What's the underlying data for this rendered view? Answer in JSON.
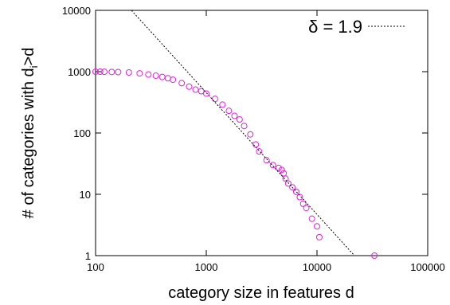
{
  "chart_data": {
    "type": "scatter",
    "xlabel": "category size in features d",
    "ylabel_parts": [
      "# of categories with d",
      "i",
      ">d"
    ],
    "xscale": "log",
    "yscale": "log",
    "xlim": [
      100,
      100000
    ],
    "ylim": [
      1,
      10000
    ],
    "xticks": [
      100,
      1000,
      10000,
      100000
    ],
    "yticks": [
      1,
      10,
      100,
      1000,
      10000
    ],
    "legend": "upper right",
    "series": [
      {
        "type": "scatter",
        "color": "#e020e0",
        "x": [
          100,
          110,
          120,
          140,
          160,
          200,
          250,
          300,
          350,
          400,
          450,
          500,
          600,
          700,
          800,
          900,
          1000,
          1200,
          1400,
          1600,
          1800,
          2000,
          2200,
          2500,
          2800,
          3000,
          3500,
          4000,
          4500,
          4800,
          5000,
          5200,
          5500,
          6000,
          6500,
          7000,
          7500,
          8000,
          9000,
          10000,
          10500,
          33000
        ],
        "values": [
          1000,
          1000,
          995,
          990,
          985,
          970,
          940,
          900,
          860,
          820,
          780,
          740,
          650,
          570,
          510,
          480,
          440,
          360,
          290,
          230,
          190,
          166,
          130,
          95,
          65,
          50,
          36,
          30,
          27,
          25,
          22,
          18,
          15,
          13,
          11,
          9,
          7,
          6,
          4,
          3,
          2,
          1
        ]
      },
      {
        "type": "line",
        "name": "δ =  1.9",
        "color": "#000000",
        "dash": "dotted",
        "x": [
          211,
          21800
        ],
        "values": [
          10000,
          1
        ]
      }
    ]
  }
}
